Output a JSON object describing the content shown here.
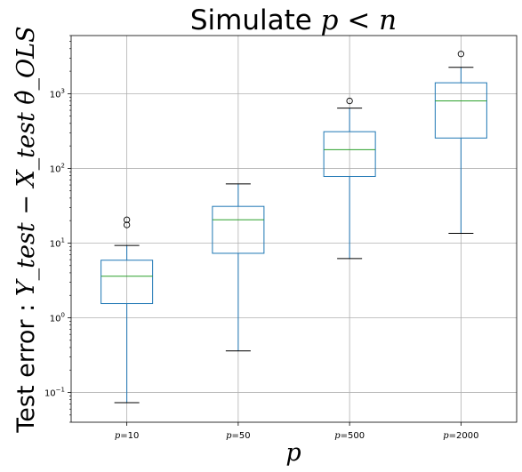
{
  "chart_data": {
    "type": "box",
    "title_prefix": "Simulate ",
    "title_math": "p < n",
    "ylabel_text": "Test error : ",
    "ylabel_math": "Y_test − X_test θ̂_OLS",
    "xlabel": "p",
    "yscale": "log",
    "ylim": [
      0.04,
      6000
    ],
    "yticks": [
      {
        "value": 0.1,
        "base": "10",
        "exp": "−1"
      },
      {
        "value": 1,
        "base": "10",
        "exp": "0"
      },
      {
        "value": 10,
        "base": "10",
        "exp": "1"
      },
      {
        "value": 100,
        "base": "10",
        "exp": "2"
      },
      {
        "value": 1000,
        "base": "10",
        "exp": "3"
      }
    ],
    "grid": true,
    "categories": [
      {
        "var": "p",
        "value": "=10"
      },
      {
        "var": "p",
        "value": "=50"
      },
      {
        "var": "p",
        "value": "=500"
      },
      {
        "var": "p",
        "value": "=2000"
      }
    ],
    "boxes": [
      {
        "whislo": 0.073,
        "q1": 1.55,
        "med": 3.6,
        "q3": 5.9,
        "whishi": 9.3,
        "fliers": [
          17.5,
          20.5
        ]
      },
      {
        "whislo": 0.36,
        "q1": 7.3,
        "med": 20.5,
        "q3": 31,
        "whishi": 62,
        "fliers": []
      },
      {
        "whislo": 6.2,
        "q1": 78,
        "med": 178,
        "q3": 310,
        "whishi": 640,
        "fliers": [
          800
        ]
      },
      {
        "whislo": 13.5,
        "q1": 255,
        "med": 800,
        "q3": 1400,
        "whishi": 2250,
        "fliers": [
          3400
        ]
      }
    ],
    "colors": {
      "box": "#1f77b4",
      "median": "#2ca02c",
      "whisker": "#000000",
      "grid": "#b0b0b0",
      "axis": "#000000"
    }
  }
}
